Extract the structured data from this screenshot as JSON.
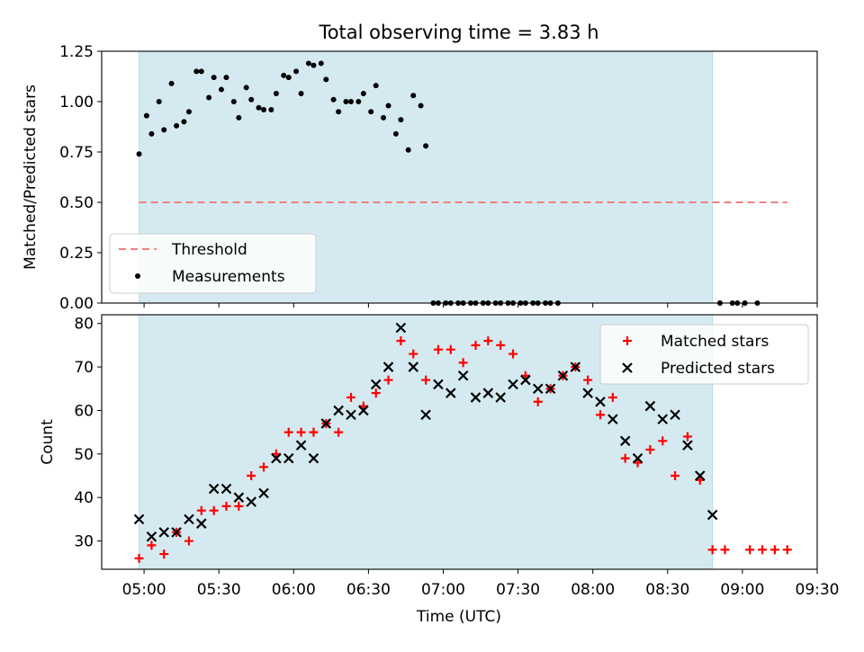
{
  "colors": {
    "shade": "#d4eaf0",
    "threshold": "#f08080",
    "matched": "#ff0000",
    "predicted": "#000000",
    "measurement": "#000000"
  },
  "chart_data": [
    {
      "type": "scatter",
      "title": "Total observing time = 3.83 h",
      "xlabel": "",
      "ylabel": "Matched/Predicted stars",
      "xlim": [
        "04:43",
        "09:30"
      ],
      "ylim": [
        0,
        1.25
      ],
      "yticks": [
        0.0,
        0.25,
        0.5,
        0.75,
        1.0,
        1.25
      ],
      "ytick_labels": [
        "0.00",
        "0.25",
        "0.50",
        "0.75",
        "1.00",
        "1.25"
      ],
      "shaded_span": [
        "04:58",
        "08:48"
      ],
      "threshold": {
        "name": "Threshold",
        "y": 0.5,
        "x": [
          "04:58",
          "09:18"
        ],
        "style": "dashed"
      },
      "legend": {
        "position": "lower-left",
        "entries": [
          "Threshold",
          "Measurements"
        ]
      },
      "series": [
        {
          "name": "Measurements",
          "x": [
            "04:58",
            "05:01",
            "05:03",
            "05:06",
            "05:08",
            "05:11",
            "05:13",
            "05:16",
            "05:18",
            "05:21",
            "05:23",
            "05:26",
            "05:28",
            "05:31",
            "05:33",
            "05:36",
            "05:38",
            "05:41",
            "05:43",
            "05:46",
            "05:48",
            "05:51",
            "05:53",
            "05:56",
            "05:58",
            "06:01",
            "06:03",
            "06:06",
            "06:08",
            "06:11",
            "06:13",
            "06:16",
            "06:18",
            "06:21",
            "06:23",
            "06:26",
            "06:28",
            "06:31",
            "06:33",
            "06:36",
            "06:38",
            "06:41",
            "06:43",
            "06:46",
            "06:48",
            "06:51",
            "06:53",
            "06:56",
            "06:58",
            "07:01",
            "07:03",
            "07:06",
            "07:08",
            "07:11",
            "07:13",
            "07:16",
            "07:18",
            "07:21",
            "07:23",
            "07:26",
            "07:28",
            "07:31",
            "07:33",
            "07:36",
            "07:38",
            "07:41",
            "07:43",
            "07:46",
            "08:51",
            "08:56",
            "08:58",
            "09:01",
            "09:06"
          ],
          "y": [
            0.74,
            0.93,
            0.84,
            1.0,
            0.86,
            1.09,
            0.88,
            0.9,
            0.95,
            1.15,
            1.15,
            1.02,
            1.12,
            1.06,
            1.12,
            1.0,
            0.92,
            1.07,
            1.01,
            0.97,
            0.96,
            0.96,
            1.04,
            1.13,
            1.12,
            1.15,
            1.04,
            1.19,
            1.18,
            1.19,
            1.11,
            1.01,
            0.95,
            1.0,
            1.0,
            1.0,
            1.04,
            0.95,
            1.08,
            0.92,
            0.98,
            0.84,
            0.91,
            0.76,
            1.03,
            0.98,
            0.78,
            0.0,
            0.0,
            0.0,
            0.0,
            0.0,
            0.0,
            0.0,
            0.0,
            0.0,
            0.0,
            0.0,
            0.0,
            0.0,
            0.0,
            0.0,
            0.0,
            0.0,
            0.0,
            0.0,
            0.0,
            0.0,
            0.0,
            0.0,
            0.0,
            0.0,
            0.0
          ]
        }
      ]
    },
    {
      "type": "scatter",
      "title": "",
      "xlabel": "Time (UTC)",
      "ylabel": "Count",
      "xlim": [
        "04:43",
        "09:30"
      ],
      "xticks": [
        "05:00",
        "05:30",
        "06:00",
        "06:30",
        "07:00",
        "07:30",
        "08:00",
        "08:30",
        "09:00",
        "09:30"
      ],
      "ylim": [
        23.5,
        82
      ],
      "yticks": [
        30,
        40,
        50,
        60,
        70,
        80
      ],
      "ytick_labels": [
        "30",
        "40",
        "50",
        "60",
        "70",
        "80"
      ],
      "shaded_span": [
        "04:58",
        "08:48"
      ],
      "legend": {
        "position": "top-right",
        "entries": [
          "Matched stars",
          "Predicted stars"
        ]
      },
      "series": [
        {
          "name": "Matched stars",
          "marker": "plus",
          "x": [
            "04:58",
            "05:03",
            "05:08",
            "05:13",
            "05:18",
            "05:23",
            "05:28",
            "05:33",
            "05:38",
            "05:43",
            "05:48",
            "05:53",
            "05:58",
            "06:03",
            "06:08",
            "06:13",
            "06:18",
            "06:23",
            "06:28",
            "06:33",
            "06:38",
            "06:43",
            "06:48",
            "06:53",
            "06:58",
            "07:03",
            "07:08",
            "07:13",
            "07:18",
            "07:23",
            "07:28",
            "07:33",
            "07:38",
            "07:43",
            "07:48",
            "07:53",
            "07:58",
            "08:03",
            "08:08",
            "08:13",
            "08:18",
            "08:23",
            "08:28",
            "08:33",
            "08:38",
            "08:43",
            "08:48",
            "08:53",
            "09:03",
            "09:08",
            "09:13",
            "09:18"
          ],
          "y": [
            26,
            29,
            27,
            32,
            30,
            37,
            37,
            38,
            38,
            45,
            47,
            50,
            55,
            55,
            55,
            57,
            55,
            63,
            61,
            64,
            67,
            76,
            73,
            67,
            74,
            74,
            71,
            75,
            76,
            75,
            73,
            68,
            62,
            65,
            68,
            70,
            67,
            59,
            63,
            49,
            48,
            51,
            53,
            45,
            54,
            44,
            28,
            28,
            28,
            28,
            28,
            28
          ]
        },
        {
          "name": "Predicted stars",
          "marker": "x",
          "x": [
            "04:58",
            "05:03",
            "05:08",
            "05:13",
            "05:18",
            "05:23",
            "05:28",
            "05:33",
            "05:38",
            "05:43",
            "05:48",
            "05:53",
            "05:58",
            "06:03",
            "06:08",
            "06:13",
            "06:18",
            "06:23",
            "06:28",
            "06:33",
            "06:38",
            "06:43",
            "06:48",
            "06:53",
            "06:58",
            "07:03",
            "07:08",
            "07:13",
            "07:18",
            "07:23",
            "07:28",
            "07:33",
            "07:38",
            "07:43",
            "07:48",
            "07:53",
            "07:58",
            "08:03",
            "08:08",
            "08:13",
            "08:18",
            "08:23",
            "08:28",
            "08:33",
            "08:38",
            "08:43",
            "08:48"
          ],
          "y": [
            35,
            31,
            32,
            32,
            35,
            34,
            42,
            42,
            40,
            39,
            41,
            49,
            49,
            52,
            49,
            57,
            60,
            59,
            60,
            66,
            70,
            79,
            70,
            59,
            66,
            64,
            68,
            63,
            64,
            63,
            66,
            67,
            65,
            65,
            68,
            70,
            64,
            62,
            58,
            53,
            49,
            61,
            58,
            59,
            52,
            45,
            36
          ]
        }
      ]
    }
  ]
}
